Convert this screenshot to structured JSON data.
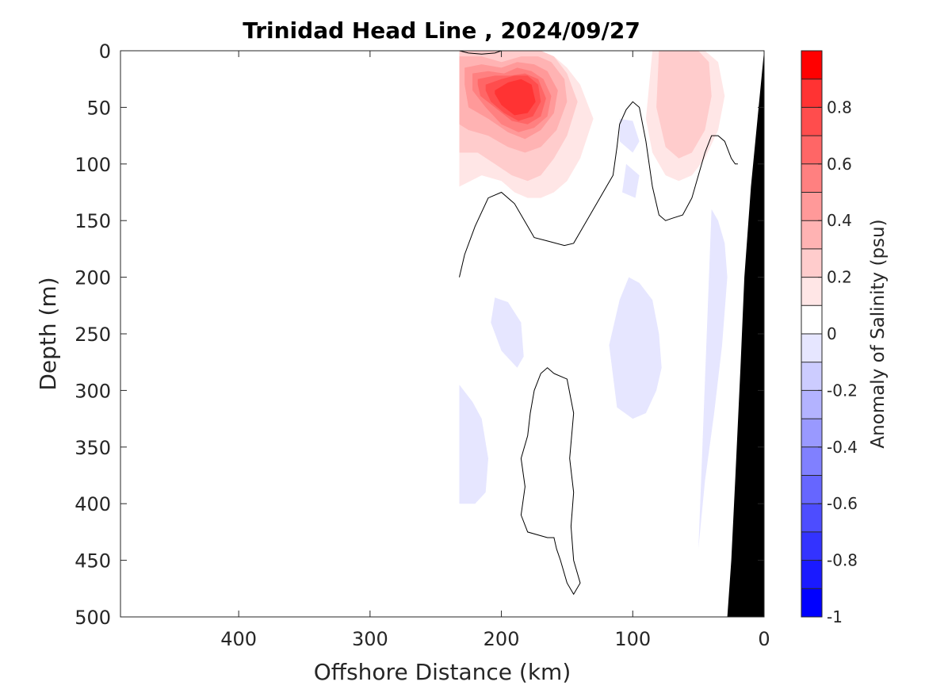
{
  "chart_data": {
    "type": "contour",
    "title": "Trinidad Head Line , 2024/09/27",
    "xlabel": "Offshore Distance (km)",
    "ylabel": "Depth (m)",
    "xlim": [
      490,
      0
    ],
    "ylim": [
      0,
      500
    ],
    "x_reversed": true,
    "y_reversed": true,
    "x_ticks": [
      400,
      300,
      200,
      100,
      0
    ],
    "y_ticks": [
      0,
      50,
      100,
      150,
      200,
      250,
      300,
      350,
      400,
      450,
      500
    ],
    "colorbar": {
      "label": "Anomaly of Salinity (psu)",
      "range": [
        -1,
        1
      ],
      "levels": [
        -1,
        -0.9,
        -0.8,
        -0.7,
        -0.6,
        -0.5,
        -0.4,
        -0.3,
        -0.2,
        -0.1,
        0,
        0.1,
        0.2,
        0.3,
        0.4,
        0.5,
        0.6,
        0.7,
        0.8,
        0.9,
        1.0
      ],
      "tick_values": [
        -1,
        -0.8,
        -0.6,
        -0.4,
        -0.2,
        0,
        0.2,
        0.4,
        0.6,
        0.8
      ],
      "tick_labels": [
        "-1",
        "-0.8",
        "-0.6",
        "-0.4",
        "-0.2",
        "0",
        "0.2",
        "0.4",
        "0.6",
        "0.8"
      ],
      "colors": [
        "#0000ff",
        "#1a1aff",
        "#3333ff",
        "#4d4dff",
        "#6666ff",
        "#8080ff",
        "#9999ff",
        "#b3b3ff",
        "#ccccff",
        "#e6e6ff",
        "#ffffff",
        "#ffffff",
        "#ffe6e6",
        "#ffcccc",
        "#ffb3b3",
        "#ff9999",
        "#ff8080",
        "#ff6666",
        "#ff4d4d",
        "#ff3333",
        "#ff0000"
      ]
    },
    "data_extent_km": [
      0,
      232
    ],
    "bathymetry_color": "#000000",
    "bathymetry": {
      "x": [
        0,
        5,
        10,
        15,
        18,
        22,
        25,
        28
      ],
      "y": [
        0,
        60,
        120,
        200,
        280,
        380,
        450,
        500
      ]
    },
    "positive_regions": [
      {
        "anomaly": 0.1,
        "x": [
          232,
          220,
          205,
          190,
          175,
          160,
          150,
          145,
          140,
          130,
          120,
          112,
          100,
          95,
          85,
          75,
          68,
          58,
          50,
          40,
          35,
          25,
          18,
          232
        ],
        "y": [
          0,
          0,
          0,
          0,
          0,
          0,
          5,
          15,
          40,
          60,
          70,
          60,
          45,
          30,
          20,
          10,
          5,
          0,
          0,
          5,
          10,
          30,
          0,
          0
        ]
      },
      {
        "anomaly": 0.2,
        "x": [
          232,
          215,
          200,
          185,
          170,
          160,
          150,
          140,
          130,
          140,
          150,
          160,
          170,
          180,
          190,
          200,
          215,
          232
        ],
        "y": [
          0,
          0,
          0,
          0,
          0,
          5,
          15,
          30,
          60,
          95,
          115,
          125,
          130,
          130,
          125,
          115,
          110,
          120
        ]
      },
      {
        "anomaly": 0.2,
        "x": [
          85,
          75,
          65,
          55,
          45,
          35,
          30,
          35,
          45,
          55,
          65,
          75,
          85,
          90,
          85
        ],
        "y": [
          0,
          0,
          0,
          0,
          0,
          10,
          40,
          70,
          95,
          110,
          115,
          110,
          90,
          60,
          0
        ]
      },
      {
        "anomaly": 0.3,
        "x": [
          232,
          215,
          200,
          185,
          170,
          160,
          150,
          142,
          150,
          160,
          170,
          180,
          192,
          205,
          218,
          232
        ],
        "y": [
          0,
          0,
          0,
          0,
          0,
          5,
          20,
          45,
          75,
          95,
          110,
          115,
          110,
          100,
          90,
          90
        ]
      },
      {
        "anomaly": 0.3,
        "x": [
          80,
          70,
          60,
          50,
          42,
          40,
          45,
          55,
          65,
          75,
          82,
          80
        ],
        "y": [
          0,
          0,
          0,
          0,
          10,
          40,
          70,
          90,
          95,
          85,
          50,
          0
        ]
      },
      {
        "anomaly": 0.4,
        "x": [
          232,
          215,
          200,
          185,
          172,
          162,
          152,
          150,
          158,
          170,
          182,
          195,
          210,
          225,
          232
        ],
        "y": [
          5,
          5,
          10,
          5,
          5,
          10,
          25,
          45,
          70,
          85,
          90,
          85,
          75,
          70,
          65
        ]
      },
      {
        "anomaly": 0.5,
        "x": [
          228,
          215,
          200,
          188,
          175,
          165,
          157,
          160,
          170,
          182,
          195,
          210,
          225,
          228
        ],
        "y": [
          15,
          12,
          15,
          10,
          12,
          18,
          35,
          55,
          70,
          78,
          72,
          60,
          50,
          30
        ]
      },
      {
        "anomaly": 0.6,
        "x": [
          222,
          210,
          198,
          188,
          177,
          168,
          162,
          165,
          175,
          187,
          200,
          212,
          222
        ],
        "y": [
          20,
          18,
          20,
          15,
          18,
          25,
          40,
          58,
          68,
          72,
          65,
          50,
          35
        ]
      },
      {
        "anomaly": 0.7,
        "x": [
          218,
          205,
          193,
          182,
          172,
          166,
          170,
          180,
          192,
          205,
          216,
          218
        ],
        "y": [
          25,
          22,
          22,
          20,
          25,
          42,
          58,
          65,
          62,
          50,
          40,
          30
        ]
      },
      {
        "anomaly": 0.8,
        "x": [
          212,
          200,
          190,
          180,
          172,
          170,
          176,
          187,
          198,
          208,
          212
        ],
        "y": [
          30,
          25,
          22,
          22,
          30,
          45,
          58,
          62,
          55,
          45,
          35
        ]
      },
      {
        "anomaly": 0.9,
        "x": [
          205,
          195,
          185,
          177,
          174,
          180,
          190,
          200,
          205
        ],
        "y": [
          35,
          28,
          25,
          30,
          45,
          55,
          57,
          48,
          38
        ]
      }
    ],
    "negative_regions": [
      {
        "anomaly": -0.1,
        "x": [
          232,
          222,
          215,
          210,
          212,
          220,
          232
        ],
        "y": [
          295,
          310,
          325,
          360,
          390,
          400,
          400
        ]
      },
      {
        "anomaly": -0.1,
        "x": [
          205,
          195,
          185,
          183,
          188,
          200,
          208,
          205
        ],
        "y": [
          218,
          222,
          240,
          270,
          280,
          265,
          240,
          218
        ]
      },
      {
        "anomaly": -0.1,
        "x": [
          103,
          95,
          85,
          80,
          78,
          82,
          90,
          100,
          112,
          118,
          110,
          103
        ],
        "y": [
          200,
          205,
          220,
          250,
          280,
          300,
          320,
          325,
          315,
          260,
          220,
          200
        ]
      },
      {
        "anomaly": -0.1,
        "x": [
          110,
          100,
          95,
          100,
          110,
          110
        ],
        "y": [
          60,
          62,
          80,
          90,
          80,
          60
        ]
      },
      {
        "anomaly": -0.1,
        "x": [
          105,
          95,
          98,
          108,
          105
        ],
        "y": [
          100,
          110,
          130,
          125,
          100
        ]
      },
      {
        "anomaly": -0.1,
        "x": [
          40,
          35,
          30,
          28,
          32,
          38,
          45,
          50,
          48,
          44,
          40
        ],
        "y": [
          140,
          150,
          170,
          200,
          260,
          320,
          380,
          440,
          380,
          260,
          140
        ]
      }
    ],
    "zero_contours": [
      {
        "x": [
          232,
          228,
          220,
          210,
          200,
          190,
          180,
          175,
          165,
          152,
          145,
          140,
          130,
          120,
          115,
          112,
          110,
          105,
          100,
          95,
          90,
          85,
          80,
          75,
          70,
          62,
          55,
          50,
          45,
          40,
          35,
          30,
          25,
          22,
          20
        ],
        "y": [
          200,
          180,
          155,
          130,
          125,
          135,
          155,
          165,
          168,
          172,
          170,
          160,
          140,
          120,
          110,
          85,
          65,
          52,
          45,
          50,
          80,
          120,
          145,
          150,
          148,
          145,
          130,
          110,
          90,
          75,
          75,
          80,
          95,
          100,
          100
        ]
      },
      {
        "x": [
          160,
          150,
          145,
          148,
          145,
          147,
          145,
          140,
          145,
          150,
          155,
          158,
          160,
          165,
          180,
          185,
          182,
          185,
          180,
          178,
          175,
          170,
          165,
          160
        ],
        "y": [
          285,
          290,
          320,
          360,
          390,
          420,
          450,
          470,
          480,
          470,
          450,
          440,
          430,
          430,
          425,
          410,
          385,
          360,
          340,
          320,
          300,
          285,
          280,
          285
        ]
      },
      {
        "x": [
          232,
          225,
          215,
          205,
          200
        ],
        "y": [
          0,
          2,
          3,
          2,
          0
        ]
      }
    ]
  }
}
